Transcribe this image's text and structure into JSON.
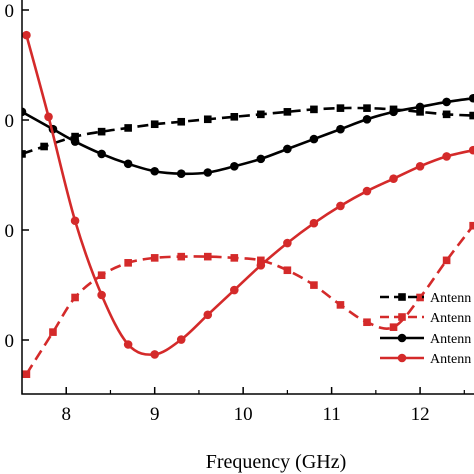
{
  "chart_data": {
    "type": "line",
    "xlabel": "Frequency (GHz)",
    "ylabel": "",
    "xlim": [
      7.5,
      12.7
    ],
    "x_ticks": [
      8,
      9,
      10,
      11,
      12
    ],
    "y_tick_labels": [
      "0",
      "0",
      "0",
      "0"
    ],
    "grid": false,
    "legend_position": "bottom-right",
    "series": [
      {
        "name": "Antenn",
        "color": "#000000",
        "line_style": "dashed",
        "marker": "square",
        "x": [
          7.5,
          7.75,
          8.1,
          8.4,
          8.7,
          9.0,
          9.3,
          9.6,
          9.9,
          10.2,
          10.5,
          10.8,
          11.1,
          11.4,
          11.7,
          12.0,
          12.3,
          12.6
        ],
        "y": [
          -3.3,
          -3.0,
          -2.6,
          -2.4,
          -2.25,
          -2.1,
          -2.0,
          -1.9,
          -1.8,
          -1.7,
          -1.6,
          -1.5,
          -1.45,
          -1.45,
          -1.5,
          -1.6,
          -1.7,
          -1.75
        ]
      },
      {
        "name": "Antenn",
        "color": "#d42a2a",
        "line_style": "dashed",
        "marker": "square",
        "x": [
          7.55,
          7.85,
          8.1,
          8.4,
          8.7,
          9.0,
          9.3,
          9.6,
          9.9,
          10.2,
          10.5,
          10.8,
          11.1,
          11.4,
          11.7,
          12.0,
          12.3,
          12.6
        ],
        "y": [
          -12.2,
          -10.5,
          -9.1,
          -8.2,
          -7.7,
          -7.5,
          -7.45,
          -7.45,
          -7.5,
          -7.6,
          -8.0,
          -8.6,
          -9.4,
          -10.1,
          -10.3,
          -9.1,
          -7.6,
          -6.2
        ]
      },
      {
        "name": "Antenn",
        "color": "#000000",
        "line_style": "solid",
        "marker": "circle",
        "x": [
          7.5,
          7.85,
          8.1,
          8.4,
          8.7,
          9.0,
          9.3,
          9.6,
          9.9,
          10.2,
          10.5,
          10.8,
          11.1,
          11.4,
          11.7,
          12.0,
          12.3,
          12.6
        ],
        "y": [
          -1.6,
          -2.3,
          -2.8,
          -3.3,
          -3.7,
          -4.0,
          -4.1,
          -4.05,
          -3.8,
          -3.5,
          -3.1,
          -2.7,
          -2.3,
          -1.9,
          -1.6,
          -1.4,
          -1.2,
          -1.05
        ]
      },
      {
        "name": "Antenn",
        "color": "#d42a2a",
        "line_style": "solid",
        "marker": "circle",
        "x": [
          7.55,
          7.8,
          8.1,
          8.4,
          8.7,
          9.0,
          9.3,
          9.6,
          9.9,
          10.2,
          10.5,
          10.8,
          11.1,
          11.4,
          11.7,
          12.0,
          12.3,
          12.6
        ],
        "y": [
          1.5,
          -1.8,
          -6.0,
          -9.0,
          -11.0,
          -11.4,
          -10.8,
          -9.8,
          -8.8,
          -7.8,
          -6.9,
          -6.1,
          -5.4,
          -4.8,
          -4.3,
          -3.8,
          -3.4,
          -3.15
        ]
      }
    ]
  }
}
